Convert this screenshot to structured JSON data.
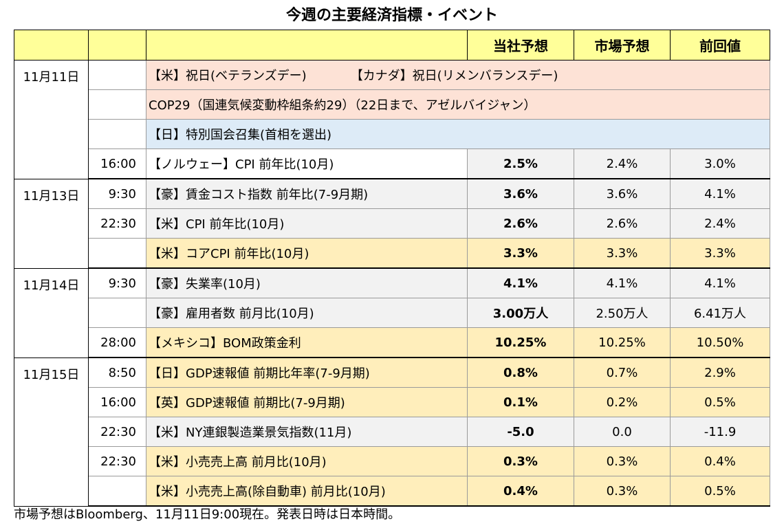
{
  "title": "今週の主要経済指標・イベント",
  "headers": {
    "ours": "当社予想",
    "market": "市場予想",
    "previous": "前回値"
  },
  "rows": [
    {
      "date": "11月11日",
      "time": "",
      "event": "【米】祝日(ベテランズデー)",
      "event2": "【カナダ】祝日(リメンバランスデー)",
      "ours": "",
      "market": "",
      "previous": ""
    },
    {
      "date": "",
      "time": "",
      "event": "COP29（国連気候変動枠組条約29）（22日まで、アゼルバイジャン）",
      "ours": "",
      "market": "",
      "previous": ""
    },
    {
      "date": "",
      "time": "",
      "event": "【日】特別国会召集(首相を選出)",
      "ours": "",
      "market": "",
      "previous": ""
    },
    {
      "date": "",
      "time": "16:00",
      "event": "【ノルウェー】CPI 前年比(10月)",
      "ours": "2.5%",
      "market": "2.4%",
      "previous": "3.0%"
    },
    {
      "date": "11月13日",
      "time": "9:30",
      "event": "【豪】賃金コスト指数 前年比(7-9月期)",
      "ours": "3.6%",
      "market": "3.6%",
      "previous": "4.1%"
    },
    {
      "date": "",
      "time": "22:30",
      "event": "【米】CPI 前年比(10月)",
      "ours": "2.6%",
      "market": "2.6%",
      "previous": "2.4%"
    },
    {
      "date": "",
      "time": "",
      "event": "【米】コアCPI 前年比(10月)",
      "ours": "3.3%",
      "market": "3.3%",
      "previous": "3.3%"
    },
    {
      "date": "11月14日",
      "time": "9:30",
      "event": "【豪】失業率(10月)",
      "ours": "4.1%",
      "market": "4.1%",
      "previous": "4.1%"
    },
    {
      "date": "",
      "time": "",
      "event": "【豪】雇用者数 前月比(10月)",
      "ours": "3.00万人",
      "market": "2.50万人",
      "previous": "6.41万人"
    },
    {
      "date": "",
      "time": "28:00",
      "event": "【メキシコ】BOM政策金利",
      "ours": "10.25%",
      "market": "10.25%",
      "previous": "10.50%"
    },
    {
      "date": "11月15日",
      "time": "8:50",
      "event": "【日】GDP速報値 前期比年率(7-9月期)",
      "ours": "0.8%",
      "market": "0.7%",
      "previous": "2.9%"
    },
    {
      "date": "",
      "time": "16:00",
      "event": "【英】GDP速報値 前期比(7-9月期)",
      "ours": "0.1%",
      "market": "0.2%",
      "previous": "0.5%"
    },
    {
      "date": "",
      "time": "22:30",
      "event": "【米】NY連銀製造業景気指数(11月)",
      "ours": "-5.0",
      "market": "0.0",
      "previous": "-11.9"
    },
    {
      "date": "",
      "time": "22:30",
      "event": "【米】小売売上高 前月比(10月)",
      "ours": "0.3%",
      "market": "0.3%",
      "previous": "0.4%"
    },
    {
      "date": "",
      "time": "",
      "event": "【米】小売売上高(除自動車) 前月比(10月)",
      "ours": "0.4%",
      "market": "0.3%",
      "previous": "0.5%"
    }
  ],
  "footnote": "市場予想はBloomberg、11月11日9:00現在。発表日時は日本時間。"
}
